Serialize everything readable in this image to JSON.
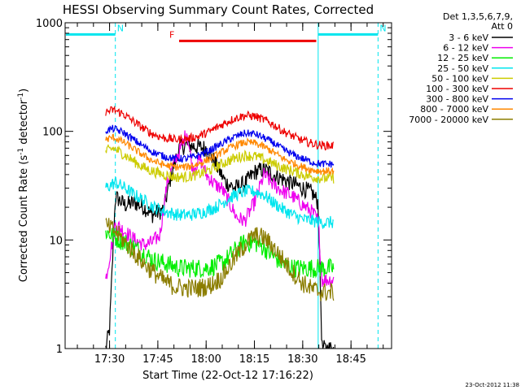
{
  "chart_data": {
    "type": "line",
    "title": "HESSI Observing Summary Count Rates, Corrected",
    "xlabel": "Start Time (22-Oct-12 17:16:22)",
    "ylabel_main": "Corrected Count Rate (s",
    "ylabel_sup1": "-1",
    "ylabel_mid": " detector",
    "ylabel_sup2": "-1",
    "ylabel_end": ")",
    "yscale": "log",
    "ylim": [
      1,
      1000
    ],
    "xlim": [
      17.27,
      18.96
    ],
    "x_ticks": [
      {
        "x": 17.5,
        "label": "17:30"
      },
      {
        "x": 17.75,
        "label": "17:45"
      },
      {
        "x": 18.0,
        "label": "18:00"
      },
      {
        "x": 18.25,
        "label": "18:15"
      },
      {
        "x": 18.5,
        "label": "18:30"
      },
      {
        "x": 18.75,
        "label": "18:45"
      }
    ],
    "y_ticks": [
      {
        "y": 1,
        "label": "1"
      },
      {
        "y": 10,
        "label": "10"
      },
      {
        "y": 100,
        "label": "100"
      },
      {
        "y": 1000,
        "label": "1000"
      }
    ],
    "legend_header": [
      "Det 1,3,5,6,7,9,",
      "Att 0"
    ],
    "legend_position": "right",
    "flags": [
      {
        "label": "N",
        "color": "#00e5ee",
        "x_start": 17.27,
        "x_end": 17.53,
        "y": 780
      },
      {
        "label": "N",
        "color": "#00e5ee",
        "x_start": 18.58,
        "x_end": 18.89,
        "y": 780
      },
      {
        "label": "F",
        "color": "#ee0000",
        "x_start": 17.86,
        "x_end": 18.57,
        "y": 680
      }
    ],
    "vertical_markers": [
      {
        "x": 17.53,
        "color": "#00e5ee",
        "style": "dashed"
      },
      {
        "x": 18.58,
        "color": "#00e5ee",
        "style": "solid"
      },
      {
        "x": 18.89,
        "color": "#00e5ee",
        "style": "dashed"
      }
    ],
    "x_start": 17.48,
    "x_end": 18.66,
    "series": [
      {
        "name": "3 - 6 keV",
        "color": "#000000",
        "noise": 0.08,
        "points": [
          [
            17.48,
            1.0
          ],
          [
            17.5,
            1.5
          ],
          [
            17.53,
            25
          ],
          [
            17.58,
            21
          ],
          [
            17.63,
            22
          ],
          [
            17.68,
            20
          ],
          [
            17.72,
            17
          ],
          [
            17.78,
            19
          ],
          [
            17.82,
            40
          ],
          [
            17.86,
            70
          ],
          [
            17.9,
            75
          ],
          [
            17.95,
            72
          ],
          [
            18.0,
            70
          ],
          [
            18.05,
            50
          ],
          [
            18.1,
            34
          ],
          [
            18.15,
            30
          ],
          [
            18.2,
            33
          ],
          [
            18.25,
            42
          ],
          [
            18.3,
            45
          ],
          [
            18.35,
            40
          ],
          [
            18.4,
            36
          ],
          [
            18.45,
            33
          ],
          [
            18.5,
            30
          ],
          [
            18.55,
            27
          ],
          [
            18.58,
            22
          ],
          [
            18.6,
            1.0
          ],
          [
            18.66,
            1.0
          ]
        ]
      },
      {
        "name": "6 - 12 keV",
        "color": "#ee00ee",
        "noise": 0.07,
        "points": [
          [
            17.48,
            4.3
          ],
          [
            17.53,
            14
          ],
          [
            17.58,
            12
          ],
          [
            17.63,
            10
          ],
          [
            17.68,
            9
          ],
          [
            17.72,
            9.5
          ],
          [
            17.76,
            11
          ],
          [
            17.8,
            35
          ],
          [
            17.84,
            55
          ],
          [
            17.87,
            70
          ],
          [
            17.9,
            100
          ],
          [
            17.93,
            45
          ],
          [
            17.97,
            55
          ],
          [
            18.0,
            40
          ],
          [
            18.05,
            32
          ],
          [
            18.08,
            30
          ],
          [
            18.12,
            22
          ],
          [
            18.16,
            16
          ],
          [
            18.2,
            15
          ],
          [
            18.25,
            22
          ],
          [
            18.3,
            40
          ],
          [
            18.35,
            32
          ],
          [
            18.4,
            28
          ],
          [
            18.45,
            25
          ],
          [
            18.5,
            21
          ],
          [
            18.55,
            18
          ],
          [
            18.58,
            15
          ],
          [
            18.6,
            4.3
          ],
          [
            18.66,
            4.3
          ]
        ]
      },
      {
        "name": "12 - 25 keV",
        "color": "#00ee00",
        "noise": 0.09,
        "points": [
          [
            17.48,
            12
          ],
          [
            17.53,
            10.5
          ],
          [
            17.58,
            9.5
          ],
          [
            17.63,
            8.5
          ],
          [
            17.68,
            7.5
          ],
          [
            17.73,
            6.5
          ],
          [
            17.8,
            6
          ],
          [
            17.86,
            5.5
          ],
          [
            17.92,
            5.5
          ],
          [
            18.0,
            5.5
          ],
          [
            18.05,
            5.8
          ],
          [
            18.1,
            6.5
          ],
          [
            18.15,
            8
          ],
          [
            18.2,
            9.5
          ],
          [
            18.25,
            9.5
          ],
          [
            18.3,
            8.5
          ],
          [
            18.35,
            7
          ],
          [
            18.4,
            6
          ],
          [
            18.45,
            5.5
          ],
          [
            18.5,
            5.5
          ],
          [
            18.55,
            5.5
          ],
          [
            18.6,
            5.5
          ],
          [
            18.66,
            5.5
          ]
        ]
      },
      {
        "name": "25 - 50 keV",
        "color": "#00e5ee",
        "noise": 0.06,
        "points": [
          [
            17.48,
            30
          ],
          [
            17.53,
            34
          ],
          [
            17.58,
            30
          ],
          [
            17.63,
            26
          ],
          [
            17.68,
            23
          ],
          [
            17.73,
            20
          ],
          [
            17.8,
            18
          ],
          [
            17.86,
            17
          ],
          [
            17.92,
            17
          ],
          [
            17.98,
            18
          ],
          [
            18.05,
            20
          ],
          [
            18.1,
            23
          ],
          [
            18.15,
            26
          ],
          [
            18.2,
            28
          ],
          [
            18.25,
            28
          ],
          [
            18.3,
            26
          ],
          [
            18.35,
            22
          ],
          [
            18.4,
            19
          ],
          [
            18.45,
            17
          ],
          [
            18.5,
            15.5
          ],
          [
            18.55,
            15
          ],
          [
            18.6,
            14.5
          ],
          [
            18.66,
            14.5
          ]
        ]
      },
      {
        "name": "50 - 100 keV",
        "color": "#cccc00",
        "noise": 0.05,
        "points": [
          [
            17.48,
            65
          ],
          [
            17.52,
            70
          ],
          [
            17.57,
            62
          ],
          [
            17.62,
            54
          ],
          [
            17.67,
            47
          ],
          [
            17.72,
            43
          ],
          [
            17.78,
            40
          ],
          [
            17.84,
            38
          ],
          [
            17.9,
            38
          ],
          [
            17.96,
            40
          ],
          [
            18.02,
            44
          ],
          [
            18.08,
            50
          ],
          [
            18.14,
            56
          ],
          [
            18.2,
            60
          ],
          [
            18.25,
            59
          ],
          [
            18.3,
            55
          ],
          [
            18.35,
            50
          ],
          [
            18.4,
            46
          ],
          [
            18.45,
            43
          ],
          [
            18.5,
            40
          ],
          [
            18.55,
            38
          ],
          [
            18.6,
            37
          ],
          [
            18.66,
            37
          ]
        ]
      },
      {
        "name": "100 - 300 keV",
        "color": "#ee0000",
        "noise": 0.04,
        "points": [
          [
            17.48,
            150
          ],
          [
            17.52,
            158
          ],
          [
            17.57,
            145
          ],
          [
            17.62,
            125
          ],
          [
            17.67,
            108
          ],
          [
            17.72,
            95
          ],
          [
            17.78,
            87
          ],
          [
            17.84,
            84
          ],
          [
            17.9,
            85
          ],
          [
            17.96,
            90
          ],
          [
            18.02,
            100
          ],
          [
            18.08,
            115
          ],
          [
            18.14,
            130
          ],
          [
            18.2,
            140
          ],
          [
            18.25,
            138
          ],
          [
            18.3,
            128
          ],
          [
            18.35,
            115
          ],
          [
            18.4,
            100
          ],
          [
            18.45,
            90
          ],
          [
            18.5,
            82
          ],
          [
            18.55,
            77
          ],
          [
            18.6,
            74
          ],
          [
            18.66,
            74
          ]
        ]
      },
      {
        "name": "300 - 800 keV",
        "color": "#0000ee",
        "noise": 0.035,
        "points": [
          [
            17.48,
            102
          ],
          [
            17.52,
            106
          ],
          [
            17.57,
            98
          ],
          [
            17.62,
            85
          ],
          [
            17.67,
            74
          ],
          [
            17.72,
            65
          ],
          [
            17.78,
            59
          ],
          [
            17.84,
            56
          ],
          [
            17.9,
            56
          ],
          [
            17.96,
            60
          ],
          [
            18.02,
            67
          ],
          [
            18.08,
            77
          ],
          [
            18.14,
            88
          ],
          [
            18.2,
            96
          ],
          [
            18.25,
            95
          ],
          [
            18.3,
            87
          ],
          [
            18.35,
            78
          ],
          [
            18.4,
            68
          ],
          [
            18.45,
            61
          ],
          [
            18.5,
            56
          ],
          [
            18.55,
            52
          ],
          [
            18.6,
            50
          ],
          [
            18.66,
            50
          ]
        ]
      },
      {
        "name": "800 - 7000 keV",
        "color": "#ff8800",
        "noise": 0.035,
        "points": [
          [
            17.48,
            84
          ],
          [
            17.52,
            88
          ],
          [
            17.57,
            80
          ],
          [
            17.62,
            70
          ],
          [
            17.67,
            61
          ],
          [
            17.72,
            54
          ],
          [
            17.78,
            49
          ],
          [
            17.84,
            47
          ],
          [
            17.9,
            47
          ],
          [
            17.96,
            50
          ],
          [
            18.02,
            56
          ],
          [
            18.08,
            64
          ],
          [
            18.14,
            73
          ],
          [
            18.2,
            79
          ],
          [
            18.25,
            78
          ],
          [
            18.3,
            72
          ],
          [
            18.35,
            64
          ],
          [
            18.4,
            56
          ],
          [
            18.45,
            51
          ],
          [
            18.5,
            47
          ],
          [
            18.55,
            44
          ],
          [
            18.6,
            43
          ],
          [
            18.66,
            43
          ]
        ]
      },
      {
        "name": "7000 - 20000 keV",
        "color": "#8b7d00",
        "noise": 0.09,
        "points": [
          [
            17.48,
            13.5
          ],
          [
            17.53,
            12
          ],
          [
            17.58,
            9.5
          ],
          [
            17.63,
            7.5
          ],
          [
            17.68,
            6
          ],
          [
            17.73,
            5
          ],
          [
            17.78,
            4.2
          ],
          [
            17.84,
            3.7
          ],
          [
            17.9,
            3.6
          ],
          [
            17.96,
            3.6
          ],
          [
            18.02,
            3.8
          ],
          [
            18.08,
            4.5
          ],
          [
            18.14,
            6.5
          ],
          [
            18.2,
            9
          ],
          [
            18.25,
            11
          ],
          [
            18.3,
            10.5
          ],
          [
            18.35,
            8.5
          ],
          [
            18.4,
            6.5
          ],
          [
            18.45,
            5
          ],
          [
            18.5,
            4
          ],
          [
            18.55,
            3.5
          ],
          [
            18.6,
            3.3
          ],
          [
            18.66,
            3.3
          ]
        ]
      }
    ],
    "grid": false
  },
  "timestamp": "23-Oct-2012 11:38"
}
